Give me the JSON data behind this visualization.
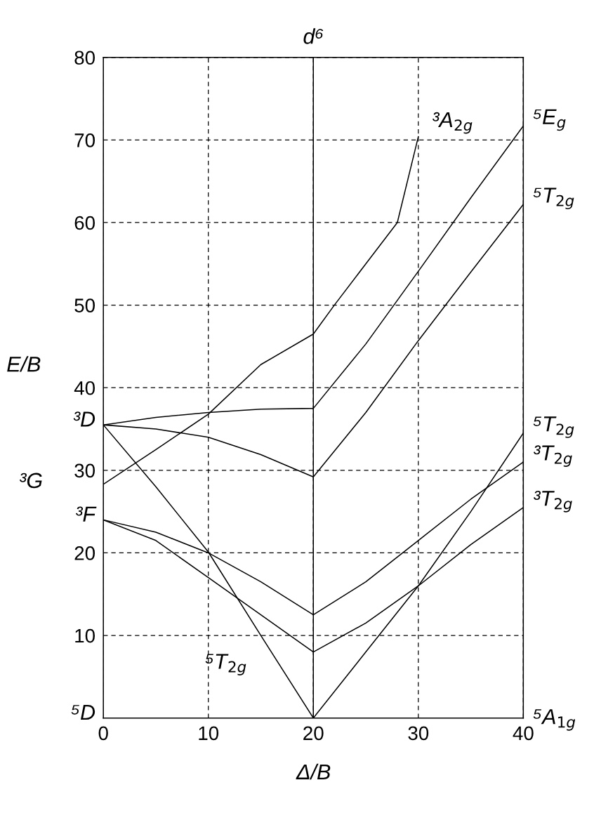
{
  "chart_data": {
    "type": "line",
    "title": "d⁶",
    "xlabel": "Δ/B",
    "ylabel": "E/B",
    "xlim": [
      0,
      40
    ],
    "ylim": [
      0,
      80
    ],
    "xticks": [
      0,
      10,
      20,
      30,
      40
    ],
    "yticks": [
      {
        "value": 0,
        "label": null
      },
      10,
      20,
      30,
      40,
      50,
      60,
      70,
      80
    ],
    "grid": true,
    "legend": false,
    "marker": "none",
    "line_style": "solid",
    "series": [
      {
        "color": "#000000",
        "x": [
          0,
          5,
          10,
          15,
          20,
          22,
          25,
          28,
          30
        ],
        "values": [
          28.3,
          32.5,
          36.8,
          42.8,
          46.5,
          50,
          55,
          60,
          70.4
        ]
      },
      {
        "color": "#000000",
        "x": [
          0,
          5,
          10,
          15,
          20,
          25,
          30,
          35,
          40
        ],
        "values": [
          35.5,
          36.4,
          37,
          37.4,
          37.5,
          45.3,
          54.1,
          63,
          71.7
        ]
      },
      {
        "color": "#000000",
        "x": [
          0,
          5,
          10,
          15,
          20,
          25,
          30,
          35,
          40
        ],
        "values": [
          35.5,
          35,
          34,
          31.9,
          29.2,
          37,
          45.7,
          54,
          62.2
        ]
      },
      {
        "color": "#000000",
        "x": [
          0,
          5,
          10,
          15,
          20,
          25,
          30,
          35,
          40
        ],
        "values": [
          35.5,
          28,
          20.1,
          10,
          0,
          8,
          16,
          25,
          34.5
        ]
      },
      {
        "color": "#000000",
        "x": [
          0,
          5,
          10,
          15,
          20,
          25,
          30,
          35,
          40
        ],
        "values": [
          24,
          22.5,
          20,
          16.5,
          12.5,
          16.5,
          21.5,
          26.5,
          31
        ]
      },
      {
        "color": "#000000",
        "x": [
          0,
          5,
          10,
          15,
          20,
          25,
          30,
          35,
          40
        ],
        "values": [
          24,
          21.5,
          17,
          12.5,
          8,
          11.5,
          16,
          21,
          25.5
        ]
      }
    ],
    "ref_lines": [
      {
        "axis": "x",
        "value": 20,
        "color": "#000000",
        "line_style": "solid"
      }
    ],
    "annotations": [
      {
        "text": "³A$_{2g}$",
        "x": 30,
        "y": 70.4
      },
      {
        "text": "⁵E$_{g}$",
        "x": 40,
        "y": 71.7
      },
      {
        "text": "⁵T$_{2g}$",
        "x": 40,
        "y": 62.2
      },
      {
        "text": "⁵T$_{2g}$",
        "x": 40,
        "y": 34.5
      },
      {
        "text": "³T$_{2g}$",
        "x": 40,
        "y": 31
      },
      {
        "text": "³T$_{2g}$",
        "x": 40,
        "y": 25.5
      },
      "⁵A$_{1g}$",
      {
        "text": "³D",
        "x": 0,
        "y": 35.5
      },
      {
        "text": "³G",
        "x": 0,
        "y": 28.3
      },
      {
        "text": "³F",
        "x": 0,
        "y": 24
      },
      "⁵D",
      {
        "text": "⁵T$_{2g}$",
        "x": 15,
        "y": 10
      }
    ]
  }
}
